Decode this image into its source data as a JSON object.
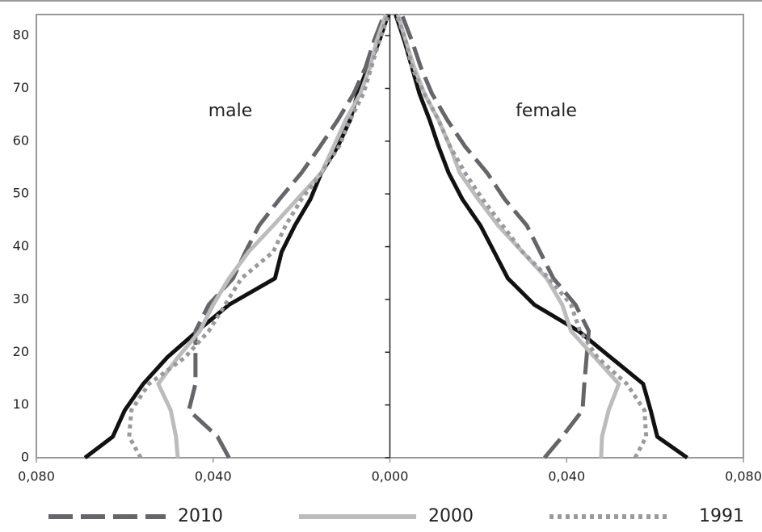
{
  "chart_data": {
    "type": "line",
    "annotations": [
      "male",
      "female"
    ],
    "y": [
      0,
      4,
      9,
      14,
      19,
      24,
      29,
      34,
      39,
      44,
      49,
      54,
      59,
      64,
      69,
      74,
      79,
      84
    ],
    "ylim": [
      0,
      84
    ],
    "yticks": [
      0,
      10,
      20,
      30,
      40,
      50,
      60,
      70,
      80
    ],
    "xlim": [
      -0.08,
      0.08
    ],
    "xticks": [
      {
        "value": -0.08,
        "label": "0,080"
      },
      {
        "value": -0.04,
        "label": "0,040"
      },
      {
        "value": 0,
        "label": "0,000"
      },
      {
        "value": 0.04,
        "label": "0,040"
      },
      {
        "value": 0.08,
        "label": "0,080"
      }
    ],
    "series": [
      {
        "color": "#111111",
        "dash": "solid",
        "male": [
          0.069,
          0.0627,
          0.06,
          0.0558,
          0.0504,
          0.0436,
          0.0364,
          0.026,
          0.0245,
          0.0215,
          0.018,
          0.0155,
          0.0118,
          0.009,
          0.0073,
          0.005,
          0.0024,
          0.0004
        ],
        "female": [
          0.0673,
          0.0605,
          0.059,
          0.0573,
          0.05,
          0.0427,
          0.0327,
          0.0267,
          0.0236,
          0.0205,
          0.0164,
          0.0133,
          0.011,
          0.009,
          0.0067,
          0.005,
          0.0033,
          0.0013
        ]
      },
      {
        "name": "2010",
        "color": "#65656a",
        "dash": "dashed",
        "male": [
          0.0364,
          0.039,
          0.0455,
          0.044,
          0.044,
          0.044,
          0.041,
          0.0355,
          0.0327,
          0.0296,
          0.025,
          0.02,
          0.0158,
          0.0118,
          0.0082,
          0.0055,
          0.0036,
          0.0013
        ],
        "female": [
          0.035,
          0.039,
          0.0436,
          0.044,
          0.0445,
          0.045,
          0.042,
          0.037,
          0.034,
          0.031,
          0.026,
          0.022,
          0.017,
          0.013,
          0.0095,
          0.007,
          0.005,
          0.0027
        ]
      },
      {
        "name": "2000",
        "color": "#bcbcbc",
        "dash": "solid",
        "male": [
          0.048,
          0.0484,
          0.0496,
          0.0524,
          0.048,
          0.043,
          0.04,
          0.0364,
          0.032,
          0.0264,
          0.021,
          0.0155,
          0.0127,
          0.01,
          0.0067,
          0.0045,
          0.003,
          0.0009
        ],
        "female": [
          0.0478,
          0.048,
          0.0495,
          0.0518,
          0.0464,
          0.041,
          0.039,
          0.0355,
          0.03,
          0.0245,
          0.02,
          0.0158,
          0.0136,
          0.011,
          0.0078,
          0.0055,
          0.0036,
          0.0018
        ]
      },
      {
        "name": "1991",
        "color": "#9a9a9e",
        "dash": "dotted",
        "male": [
          0.0564,
          0.059,
          0.0585,
          0.0545,
          0.0464,
          0.041,
          0.0373,
          0.0336,
          0.0264,
          0.0236,
          0.02,
          0.0155,
          0.0115,
          0.009,
          0.006,
          0.0042,
          0.0024,
          0.0005
        ],
        "female": [
          0.0555,
          0.058,
          0.0576,
          0.0536,
          0.047,
          0.043,
          0.041,
          0.036,
          0.03,
          0.0255,
          0.021,
          0.017,
          0.0136,
          0.011,
          0.0078,
          0.005,
          0.0036,
          0.0015
        ]
      }
    ]
  }
}
